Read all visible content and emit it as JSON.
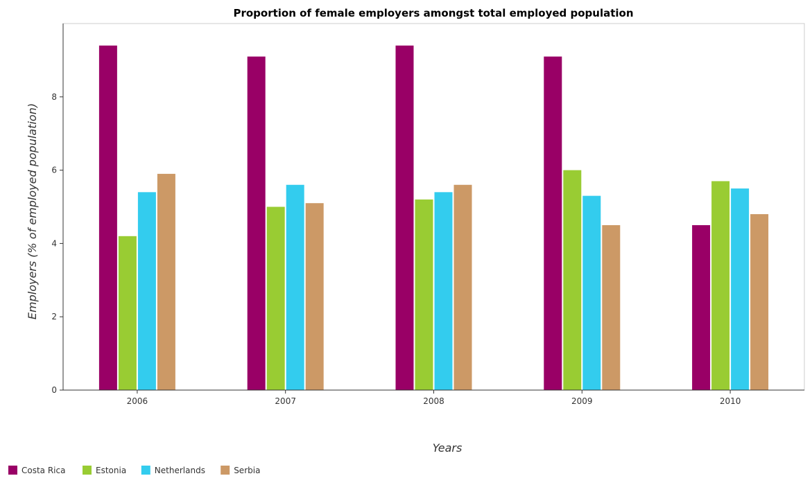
{
  "chart_data": {
    "type": "bar",
    "title": "Proportion of female employers amongst total employed population",
    "xlabel": "Years",
    "ylabel": "Employers (% of employed population)",
    "categories": [
      "2006",
      "2007",
      "2008",
      "2009",
      "2010"
    ],
    "ylim": [
      0,
      10
    ],
    "yticks": [
      0,
      2,
      4,
      6,
      8
    ],
    "grid": false,
    "legend_position": "bottom-left",
    "series": [
      {
        "name": "Costa Rica",
        "color": "#990066",
        "values": [
          9.4,
          9.1,
          9.4,
          9.1,
          4.5
        ]
      },
      {
        "name": "Estonia",
        "color": "#99cc33",
        "values": [
          4.2,
          5.0,
          5.2,
          6.0,
          5.7
        ]
      },
      {
        "name": "Netherlands",
        "color": "#33ccee",
        "values": [
          5.4,
          5.6,
          5.4,
          5.3,
          5.5
        ]
      },
      {
        "name": "Serbia",
        "color": "#cc9966",
        "values": [
          5.9,
          5.1,
          5.6,
          4.5,
          4.8
        ]
      }
    ]
  }
}
